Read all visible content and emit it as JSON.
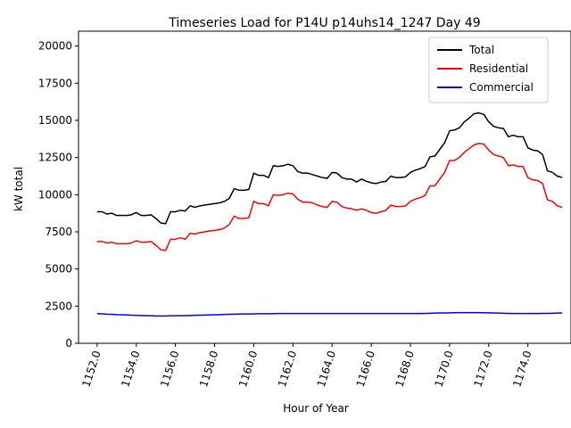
{
  "chart_data": {
    "type": "line",
    "title": "Timeseries Load for P14U p14uhs14_1247  Day 49",
    "xlabel": "Hour of Year",
    "ylabel": "kW total",
    "xlim": [
      1151.05,
      1176.2
    ],
    "ylim": [
      0,
      21000
    ],
    "xticks": [
      1152,
      1154,
      1156,
      1158,
      1160,
      1162,
      1164,
      1166,
      1168,
      1170,
      1172,
      1174
    ],
    "xtick_labels": [
      "1152.0",
      "1154.0",
      "1156.0",
      "1158.0",
      "1160.0",
      "1162.0",
      "1164.0",
      "1166.0",
      "1168.0",
      "1170.0",
      "1172.0",
      "1174.0"
    ],
    "yticks": [
      0,
      2500,
      5000,
      7500,
      10000,
      12500,
      15000,
      17500,
      20000
    ],
    "ytick_labels": [
      "0",
      "2500",
      "5000",
      "7500",
      "10000",
      "12500",
      "15000",
      "17500",
      "20000"
    ],
    "legend_position": "top-right",
    "x_start": 1152,
    "x_step": 0.25,
    "series": [
      {
        "name": "Total",
        "color": "#000000",
        "values": [
          8850,
          8850,
          8700,
          8750,
          8600,
          8600,
          8600,
          8650,
          8800,
          8600,
          8600,
          8650,
          8400,
          8100,
          8050,
          8850,
          8850,
          8950,
          8900,
          9250,
          9150,
          9250,
          9300,
          9350,
          9400,
          9450,
          9550,
          9750,
          10400,
          10300,
          10300,
          10350,
          11450,
          11300,
          11300,
          11150,
          11950,
          11900,
          11950,
          12050,
          11950,
          11550,
          11450,
          11450,
          11350,
          11250,
          11150,
          11100,
          11500,
          11450,
          11150,
          11050,
          11050,
          10850,
          11050,
          10900,
          10800,
          10750,
          10850,
          10900,
          11250,
          11150,
          11150,
          11200,
          11500,
          11650,
          11750,
          11900,
          12550,
          12600,
          13050,
          13500,
          14300,
          14350,
          14500,
          14900,
          15150,
          15450,
          15500,
          15400,
          14900,
          14600,
          14500,
          14450,
          13900,
          14000,
          13900,
          13900,
          13150,
          13000,
          12950,
          12700,
          11600,
          11500,
          11250,
          11150
        ]
      },
      {
        "name": "Residential",
        "color": "#ff0000",
        "values": [
          6850,
          6850,
          6750,
          6800,
          6700,
          6700,
          6700,
          6750,
          6900,
          6800,
          6800,
          6850,
          6600,
          6300,
          6250,
          7000,
          7000,
          7100,
          7000,
          7400,
          7350,
          7450,
          7500,
          7550,
          7600,
          7650,
          7750,
          8000,
          8550,
          8400,
          8400,
          8450,
          9550,
          9400,
          9400,
          9250,
          10000,
          9950,
          10000,
          10100,
          10050,
          9700,
          9500,
          9500,
          9450,
          9300,
          9200,
          9150,
          9550,
          9500,
          9200,
          9100,
          9050,
          8950,
          9050,
          8950,
          8800,
          8750,
          8850,
          8950,
          9300,
          9200,
          9200,
          9250,
          9550,
          9700,
          9800,
          9950,
          10600,
          10600,
          11050,
          11500,
          12300,
          12300,
          12500,
          12850,
          13100,
          13350,
          13450,
          13400,
          13000,
          12700,
          12600,
          12500,
          11950,
          12000,
          11900,
          11900,
          11150,
          11000,
          10950,
          10750,
          9650,
          9550,
          9250,
          9150
        ]
      },
      {
        "name": "Commercial",
        "color": "#0000ff",
        "values": [
          2000,
          1980,
          1960,
          1950,
          1930,
          1920,
          1910,
          1890,
          1880,
          1870,
          1860,
          1850,
          1840,
          1840,
          1840,
          1850,
          1850,
          1860,
          1860,
          1870,
          1880,
          1890,
          1900,
          1910,
          1920,
          1930,
          1940,
          1950,
          1960,
          1965,
          1970,
          1975,
          1980,
          1985,
          1990,
          1990,
          1995,
          2000,
          2000,
          2000,
          2000,
          2000,
          2000,
          2000,
          2000,
          2000,
          2000,
          2000,
          2005,
          2005,
          2005,
          2005,
          2005,
          2000,
          2000,
          2000,
          2000,
          2000,
          2000,
          2000,
          2000,
          2000,
          2000,
          2000,
          2000,
          2000,
          2000,
          2010,
          2020,
          2030,
          2040,
          2040,
          2050,
          2055,
          2060,
          2060,
          2060,
          2060,
          2060,
          2055,
          2050,
          2040,
          2030,
          2020,
          2010,
          2000,
          2000,
          2000,
          2000,
          2000,
          2005,
          2010,
          2010,
          2020,
          2030,
          2040
        ]
      }
    ]
  }
}
